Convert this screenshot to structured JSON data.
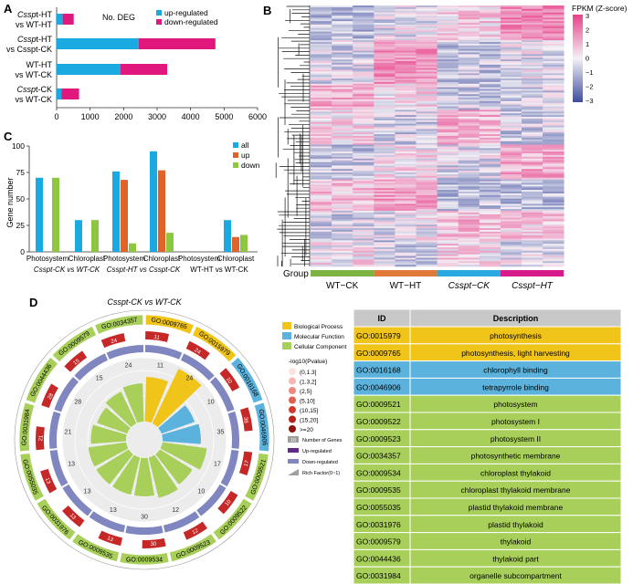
{
  "colors": {
    "up": "#1ba9e1",
    "down": "#e0177d",
    "all": "#1ba9e1",
    "up_c": "#e0632a",
    "down_c": "#8dc63f",
    "bp": "#f0c419",
    "mf": "#5bb3dd",
    "cc": "#a8cf5a",
    "group_wt_ck": "#7cb342",
    "group_wt_ht": "#e07a3a",
    "group_cs_ck": "#29a9e0",
    "group_cs_ht": "#d81b8a",
    "heat_hi": "#e8418a",
    "heat_lo": "#3d4c9e"
  },
  "panel_a": {
    "letter": "A",
    "title": "No. DEG",
    "legend_up": "up-regulated",
    "legend_down": "down-regulated",
    "rows": [
      {
        "l1": "Cssp",
        "l1b": "t-HT",
        "l2": "vs WT-HT",
        "up": 180,
        "down": 330
      },
      {
        "l1": "Cssp",
        "l1b": "t-HT",
        "l2": "vs Csspt-CK",
        "up": 2450,
        "down": 2290
      },
      {
        "l1": "WT-HT",
        "l1b": "",
        "l2": "vs WT-CK",
        "up": 1900,
        "down": 1400
      },
      {
        "l1": "Cssp",
        "l1b": "t-CK",
        "l2": "vs WT-CK",
        "up": 150,
        "down": 520
      }
    ],
    "xticks": [
      "0",
      "1000",
      "2000",
      "3000",
      "4000",
      "5000",
      "6000"
    ]
  },
  "chart_data": [
    {
      "type": "bar",
      "title": "No. DEG",
      "categories": [
        "Csspt-HT vs WT-HT",
        "Csspt-HT vs Csspt-CK",
        "WT-HT vs WT-CK",
        "Csspt-CK vs WT-CK"
      ],
      "series": [
        {
          "name": "up-regulated",
          "values": [
            180,
            2450,
            1900,
            150
          ]
        },
        {
          "name": "down-regulated",
          "values": [
            330,
            2290,
            1400,
            520
          ]
        }
      ],
      "xlim": [
        0,
        6000
      ]
    },
    {
      "type": "bar",
      "ylabel": "Gene number",
      "groups": [
        "Csspt-CK vs WT-CK",
        "Csspt-HT vs Csspt-CK",
        "WT-HT vs WT-CK"
      ],
      "categories": [
        "Photosystem",
        "Chloroplast",
        "Photosystem",
        "Chloroplast",
        "Photosystem",
        "Chloroplast"
      ],
      "series": [
        {
          "name": "all",
          "values": [
            70,
            30,
            76,
            95,
            0,
            30
          ]
        },
        {
          "name": "up",
          "values": [
            0,
            0,
            68,
            77,
            0,
            14
          ]
        },
        {
          "name": "down",
          "values": [
            70,
            30,
            8,
            18,
            0,
            16
          ]
        }
      ],
      "ylim": [
        0,
        100
      ]
    }
  ],
  "panel_b": {
    "letter": "B",
    "legend_title": "FPKM (Z-score)",
    "legend_ticks": [
      "3",
      "2",
      "1",
      "0",
      "−1",
      "−2",
      "−3"
    ],
    "group_label": "Group",
    "groups": [
      "WT−CK",
      "WT−HT",
      "Csspt−CK",
      "Csspt−HT"
    ]
  },
  "panel_c": {
    "letter": "C",
    "ylabel": "Gene number",
    "yticks": [
      "0",
      "25",
      "50",
      "75",
      "100"
    ],
    "legend": [
      "all",
      "up",
      "down"
    ],
    "cat_labels": [
      "Photosystem",
      "Chloroplast",
      "Photosystem",
      "Chloroplast",
      "Photosystem",
      "Chloroplast"
    ],
    "group_labels": [
      "Csspt-CK vs WT-CK",
      "Csspt-HT vs Csspt-CK",
      "WT-HT vs WT-CK"
    ]
  },
  "panel_d": {
    "letter": "D",
    "title": "Csspt-CK vs WT-CK",
    "legend_cat": [
      "Biological Process",
      "Molecular Function",
      "Cellular Component"
    ],
    "legend_p_title": "-log10(Pvalue)",
    "legend_p": [
      "(0,1.3]",
      "(1.3,2]",
      "(2,5]",
      "(5,10]",
      "(10,15]",
      "(15,20]",
      ">=20"
    ],
    "legend_misc": [
      "Number of Genes",
      "Up-regulated",
      "Down-regulated",
      "Rich Factor(0~1)"
    ],
    "legend_misc_box": "10",
    "go_ids": [
      "GO:0009765",
      "GO:0015979",
      "GO:0016168",
      "GO:0046906",
      "GO:0009521",
      "GO:0009522",
      "GO:0009523",
      "GO:0009534",
      "GO:0009535",
      "GO:0031976",
      "GO:0055035",
      "GO:0031984",
      "GO:0044436",
      "GO:0009579",
      "GO:0034357"
    ],
    "gene_counts": [
      "11",
      "24",
      "10",
      "38",
      "17",
      "10",
      "12",
      "30",
      "13",
      "13",
      "13",
      "21",
      "28",
      "15",
      "24"
    ],
    "down_counts": [
      "11",
      "24",
      "10",
      "35",
      "17",
      "10",
      "12",
      "30",
      "13",
      "13",
      "13",
      "21",
      "28",
      "15",
      "24"
    ],
    "rich": [
      0.7,
      0.95,
      0.55,
      0.6,
      0.7,
      0.6,
      0.65,
      0.6,
      0.6,
      0.6,
      0.6,
      0.55,
      0.5,
      0.55,
      0.6
    ]
  },
  "go_table": {
    "headers": [
      "ID",
      "Description"
    ],
    "rows": [
      {
        "id": "GO:0015979",
        "desc": "photosynthesis",
        "cat": "bp"
      },
      {
        "id": "GO:0009765",
        "desc": "photosynthesis, light harvesting",
        "cat": "bp"
      },
      {
        "id": "GO:0016168",
        "desc": "chlorophyll binding",
        "cat": "mf"
      },
      {
        "id": "GO:0046906",
        "desc": "tetrapyrrole binding",
        "cat": "mf"
      },
      {
        "id": "GO:0009521",
        "desc": "photosystem",
        "cat": "cc"
      },
      {
        "id": "GO:0009522",
        "desc": "photosystem I",
        "cat": "cc"
      },
      {
        "id": "GO:0009523",
        "desc": "photosystem II",
        "cat": "cc"
      },
      {
        "id": "GO:0034357",
        "desc": "photosynthetic membrane",
        "cat": "cc"
      },
      {
        "id": "GO:0009534",
        "desc": "chloroplast thylakoid",
        "cat": "cc"
      },
      {
        "id": "GO:0009535",
        "desc": "chloroplast thylakoid membrane",
        "cat": "cc"
      },
      {
        "id": "GO:0055035",
        "desc": "plastid thylakoid membrane",
        "cat": "cc"
      },
      {
        "id": "GO:0031976",
        "desc": "plastid thylakoid",
        "cat": "cc"
      },
      {
        "id": "GO:0009579",
        "desc": "thylakoid",
        "cat": "cc"
      },
      {
        "id": "GO:0044436",
        "desc": "thylakoid part",
        "cat": "cc"
      },
      {
        "id": "GO:0031984",
        "desc": "organelle subcompartment",
        "cat": "cc"
      }
    ]
  }
}
